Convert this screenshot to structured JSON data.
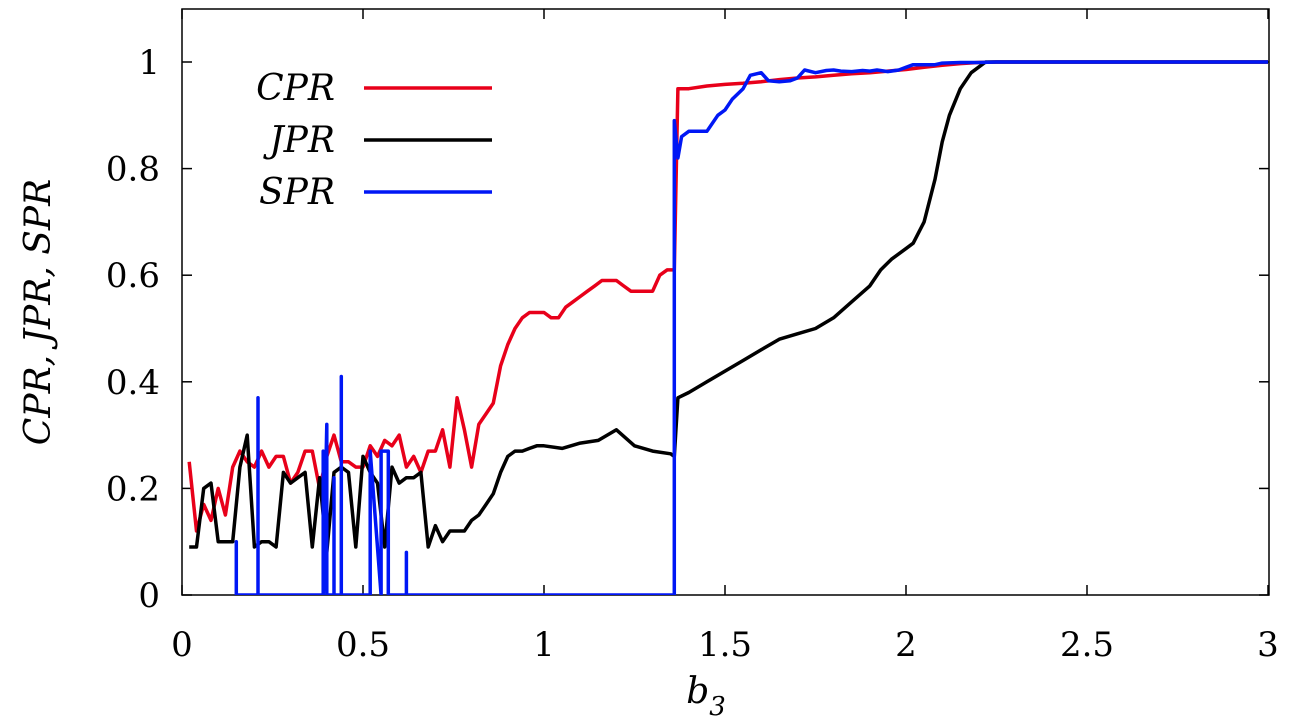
{
  "chart_data": {
    "type": "line",
    "xlabel": "b3",
    "xlabel_base": "b",
    "xlabel_sub": "3",
    "ylabel": "CPR, JPR, SPR",
    "xlim": [
      0,
      3
    ],
    "ylim": [
      0,
      1.1
    ],
    "xticks": [
      0,
      0.5,
      1,
      1.5,
      2,
      2.5,
      3
    ],
    "xtick_labels": [
      "0",
      "0.5",
      "1",
      "1.5",
      "2",
      "2.5",
      "3"
    ],
    "yticks": [
      0,
      0.2,
      0.4,
      0.6,
      0.8,
      1
    ],
    "ytick_labels": [
      "0",
      "0.2",
      "0.4",
      "0.6",
      "0.8",
      "1"
    ],
    "grid": false,
    "legend": "top-left",
    "series": [
      {
        "name": "CPR",
        "color": "#e8001a",
        "x": [
          0.02,
          0.04,
          0.06,
          0.08,
          0.1,
          0.12,
          0.14,
          0.16,
          0.18,
          0.2,
          0.22,
          0.24,
          0.26,
          0.28,
          0.3,
          0.32,
          0.34,
          0.36,
          0.38,
          0.4,
          0.42,
          0.44,
          0.46,
          0.48,
          0.5,
          0.52,
          0.54,
          0.56,
          0.58,
          0.6,
          0.62,
          0.64,
          0.66,
          0.68,
          0.7,
          0.72,
          0.74,
          0.76,
          0.78,
          0.8,
          0.82,
          0.84,
          0.86,
          0.88,
          0.9,
          0.92,
          0.94,
          0.96,
          0.98,
          1.0,
          1.02,
          1.04,
          1.06,
          1.08,
          1.1,
          1.12,
          1.14,
          1.16,
          1.18,
          1.2,
          1.22,
          1.24,
          1.26,
          1.28,
          1.3,
          1.32,
          1.34,
          1.35,
          1.36,
          1.37,
          1.4,
          1.45,
          1.5,
          1.55,
          1.6,
          1.65,
          1.7,
          1.75,
          1.8,
          1.85,
          1.9,
          1.95,
          2.0,
          2.05,
          2.1,
          2.15,
          2.2,
          2.25,
          2.3,
          2.4,
          2.5,
          2.6,
          2.7,
          2.8,
          2.9,
          3.0
        ],
        "y": [
          0.25,
          0.12,
          0.17,
          0.14,
          0.2,
          0.15,
          0.24,
          0.27,
          0.25,
          0.24,
          0.27,
          0.24,
          0.26,
          0.26,
          0.21,
          0.23,
          0.27,
          0.27,
          0.2,
          0.26,
          0.3,
          0.25,
          0.25,
          0.24,
          0.24,
          0.28,
          0.26,
          0.29,
          0.28,
          0.3,
          0.24,
          0.26,
          0.23,
          0.27,
          0.27,
          0.31,
          0.24,
          0.37,
          0.31,
          0.24,
          0.32,
          0.34,
          0.36,
          0.43,
          0.47,
          0.5,
          0.52,
          0.53,
          0.53,
          0.53,
          0.52,
          0.52,
          0.54,
          0.55,
          0.56,
          0.57,
          0.58,
          0.59,
          0.59,
          0.59,
          0.58,
          0.57,
          0.57,
          0.57,
          0.57,
          0.6,
          0.61,
          0.61,
          0.61,
          0.95,
          0.95,
          0.955,
          0.958,
          0.96,
          0.963,
          0.967,
          0.97,
          0.972,
          0.975,
          0.978,
          0.98,
          0.983,
          0.986,
          0.99,
          0.994,
          0.997,
          0.999,
          1.0,
          1.0,
          1.0,
          1.0,
          1.0,
          1.0,
          1.0,
          1.0,
          1.0
        ]
      },
      {
        "name": "JPR",
        "color": "#000000",
        "x": [
          0.02,
          0.04,
          0.06,
          0.08,
          0.1,
          0.12,
          0.14,
          0.16,
          0.18,
          0.2,
          0.22,
          0.24,
          0.26,
          0.28,
          0.3,
          0.32,
          0.34,
          0.36,
          0.38,
          0.4,
          0.42,
          0.44,
          0.46,
          0.48,
          0.5,
          0.52,
          0.54,
          0.56,
          0.58,
          0.6,
          0.62,
          0.64,
          0.66,
          0.68,
          0.7,
          0.72,
          0.74,
          0.76,
          0.78,
          0.8,
          0.82,
          0.84,
          0.86,
          0.88,
          0.9,
          0.92,
          0.94,
          0.96,
          0.98,
          1.0,
          1.05,
          1.1,
          1.15,
          1.2,
          1.25,
          1.3,
          1.35,
          1.36,
          1.37,
          1.4,
          1.45,
          1.5,
          1.55,
          1.6,
          1.65,
          1.7,
          1.75,
          1.8,
          1.85,
          1.9,
          1.93,
          1.96,
          2.0,
          2.02,
          2.05,
          2.08,
          2.1,
          2.12,
          2.15,
          2.18,
          2.2,
          2.22,
          2.25,
          2.27,
          2.3,
          2.4,
          2.5,
          2.6,
          2.7,
          2.8,
          2.9,
          3.0
        ],
        "y": [
          0.09,
          0.09,
          0.2,
          0.21,
          0.1,
          0.1,
          0.1,
          0.24,
          0.3,
          0.09,
          0.1,
          0.1,
          0.09,
          0.23,
          0.21,
          0.22,
          0.23,
          0.09,
          0.22,
          0.08,
          0.23,
          0.24,
          0.23,
          0.09,
          0.26,
          0.23,
          0.21,
          0.09,
          0.24,
          0.21,
          0.22,
          0.22,
          0.23,
          0.09,
          0.13,
          0.1,
          0.12,
          0.12,
          0.12,
          0.14,
          0.15,
          0.17,
          0.19,
          0.23,
          0.26,
          0.27,
          0.27,
          0.275,
          0.28,
          0.28,
          0.275,
          0.285,
          0.29,
          0.31,
          0.28,
          0.27,
          0.265,
          0.26,
          0.37,
          0.38,
          0.4,
          0.42,
          0.44,
          0.46,
          0.48,
          0.49,
          0.5,
          0.52,
          0.55,
          0.58,
          0.61,
          0.63,
          0.65,
          0.66,
          0.7,
          0.78,
          0.85,
          0.9,
          0.95,
          0.98,
          0.99,
          1.0,
          1.0,
          1.0,
          1.0,
          1.0,
          1.0,
          1.0,
          1.0,
          1.0,
          1.0,
          1.0
        ]
      },
      {
        "name": "SPR",
        "color": "#0017f5",
        "x": [
          0.15,
          0.15,
          0.15,
          0.21,
          0.21,
          0.21,
          0.22,
          0.22,
          0.22,
          0.39,
          0.39,
          0.39,
          0.4,
          0.4,
          0.42,
          0.42,
          0.42,
          0.44,
          0.44,
          0.44,
          0.45,
          0.45,
          0.45,
          0.52,
          0.52,
          0.52,
          0.55,
          0.55,
          0.57,
          0.57,
          0.57,
          0.62,
          0.62,
          0.62,
          1.36,
          1.36,
          1.37,
          1.38,
          1.4,
          1.42,
          1.45,
          1.48,
          1.5,
          1.52,
          1.55,
          1.57,
          1.6,
          1.62,
          1.65,
          1.68,
          1.7,
          1.72,
          1.75,
          1.78,
          1.8,
          1.82,
          1.85,
          1.88,
          1.9,
          1.92,
          1.95,
          1.98,
          2.0,
          2.02,
          2.05,
          2.08,
          2.1,
          2.15,
          2.2,
          2.25,
          2.3,
          2.4,
          2.5,
          2.6,
          2.7,
          2.8,
          2.9,
          3.0
        ],
        "y": [
          0,
          0.1,
          0,
          0,
          0.37,
          0,
          0,
          0,
          0,
          0,
          0.27,
          0,
          0.32,
          0,
          0,
          0.22,
          0,
          0,
          0.41,
          0,
          0,
          0,
          0,
          0,
          0.13,
          0.27,
          0,
          0.27,
          0.27,
          0,
          0,
          0,
          0.08,
          0,
          0,
          0.89,
          0.82,
          0.86,
          0.87,
          0.87,
          0.87,
          0.9,
          0.91,
          0.93,
          0.95,
          0.975,
          0.98,
          0.965,
          0.963,
          0.965,
          0.97,
          0.985,
          0.98,
          0.984,
          0.985,
          0.983,
          0.982,
          0.984,
          0.983,
          0.985,
          0.982,
          0.985,
          0.99,
          0.995,
          0.995,
          0.995,
          0.998,
          0.999,
          0.999,
          1.0,
          1.0,
          1.0,
          1.0,
          1.0,
          1.0,
          1.0,
          1.0,
          1.0
        ]
      }
    ]
  }
}
